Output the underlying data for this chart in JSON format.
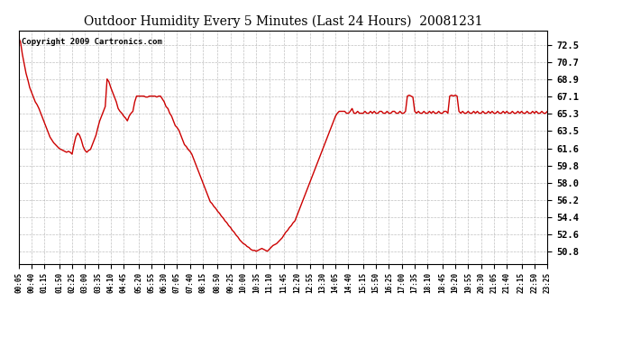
{
  "title": "Outdoor Humidity Every 5 Minutes (Last 24 Hours)  20081231",
  "copyright": "Copyright 2009 Cartronics.com",
  "line_color": "#cc0000",
  "bg_color": "#ffffff",
  "plot_bg_color": "#ffffff",
  "grid_color": "#b0b0b0",
  "yticks": [
    50.8,
    52.6,
    54.4,
    56.2,
    58.0,
    59.8,
    61.6,
    63.5,
    65.3,
    67.1,
    68.9,
    70.7,
    72.5
  ],
  "ylim": [
    49.5,
    74.0
  ],
  "x_labels": [
    "00:05",
    "00:40",
    "01:15",
    "01:50",
    "02:25",
    "03:00",
    "03:35",
    "04:10",
    "04:45",
    "05:20",
    "05:55",
    "06:30",
    "07:05",
    "07:40",
    "08:15",
    "08:50",
    "09:25",
    "10:00",
    "10:35",
    "11:10",
    "11:45",
    "12:20",
    "12:55",
    "13:30",
    "14:05",
    "14:40",
    "15:15",
    "15:50",
    "16:25",
    "17:00",
    "17:35",
    "18:10",
    "18:45",
    "19:20",
    "19:55",
    "20:30",
    "21:05",
    "21:40",
    "22:15",
    "22:50",
    "23:25"
  ],
  "y_data": [
    73.2,
    72.8,
    71.5,
    70.5,
    69.5,
    68.8,
    68.0,
    67.5,
    67.0,
    66.5,
    66.2,
    65.8,
    65.3,
    64.8,
    64.3,
    63.8,
    63.3,
    62.8,
    62.5,
    62.2,
    62.0,
    61.8,
    61.6,
    61.5,
    61.4,
    61.3,
    61.2,
    61.3,
    61.2,
    61.0,
    62.0,
    62.8,
    63.2,
    63.0,
    62.5,
    61.8,
    61.4,
    61.2,
    61.4,
    61.5,
    62.0,
    62.5,
    63.0,
    63.8,
    64.5,
    65.0,
    65.5,
    66.0,
    68.9,
    68.6,
    68.0,
    67.5,
    67.0,
    66.5,
    65.8,
    65.5,
    65.3,
    65.0,
    64.8,
    64.5,
    65.0,
    65.3,
    65.5,
    66.5,
    67.1,
    67.1,
    67.1,
    67.1,
    67.1,
    67.0,
    67.0,
    67.1,
    67.1,
    67.1,
    67.1,
    67.0,
    67.1,
    67.1,
    66.8,
    66.5,
    66.0,
    65.8,
    65.3,
    65.0,
    64.5,
    64.0,
    63.8,
    63.5,
    63.0,
    62.5,
    62.0,
    61.8,
    61.5,
    61.3,
    61.0,
    60.5,
    60.0,
    59.5,
    59.0,
    58.5,
    58.0,
    57.5,
    57.0,
    56.5,
    56.0,
    55.8,
    55.5,
    55.3,
    55.0,
    54.8,
    54.5,
    54.3,
    54.0,
    53.8,
    53.5,
    53.3,
    53.0,
    52.8,
    52.5,
    52.3,
    52.0,
    51.8,
    51.6,
    51.5,
    51.3,
    51.2,
    51.0,
    50.9,
    50.9,
    50.8,
    50.9,
    51.0,
    51.1,
    51.0,
    50.9,
    50.8,
    51.0,
    51.2,
    51.4,
    51.5,
    51.6,
    51.8,
    52.0,
    52.2,
    52.5,
    52.8,
    53.0,
    53.3,
    53.5,
    53.8,
    54.0,
    54.5,
    55.0,
    55.5,
    56.0,
    56.5,
    57.0,
    57.5,
    58.0,
    58.5,
    59.0,
    59.5,
    60.0,
    60.5,
    61.0,
    61.5,
    62.0,
    62.5,
    63.0,
    63.5,
    64.0,
    64.5,
    65.0,
    65.3,
    65.5,
    65.5,
    65.5,
    65.5,
    65.3,
    65.3,
    65.5,
    65.8,
    65.3,
    65.3,
    65.5,
    65.3,
    65.3,
    65.3,
    65.5,
    65.3,
    65.3,
    65.5,
    65.3,
    65.5,
    65.3,
    65.3,
    65.5,
    65.5,
    65.3,
    65.3,
    65.5,
    65.3,
    65.3,
    65.5,
    65.5,
    65.3,
    65.3,
    65.5,
    65.3,
    65.3,
    65.5,
    67.1,
    67.2,
    67.1,
    67.0,
    65.5,
    65.3,
    65.5,
    65.3,
    65.3,
    65.5,
    65.3,
    65.3,
    65.5,
    65.3,
    65.5,
    65.3,
    65.3,
    65.5,
    65.3,
    65.3,
    65.5,
    65.5,
    65.3,
    67.1,
    67.2,
    67.1,
    67.2,
    67.1,
    65.5,
    65.3,
    65.5,
    65.3,
    65.3,
    65.5,
    65.3,
    65.3,
    65.5,
    65.3,
    65.5,
    65.3,
    65.3,
    65.5,
    65.3,
    65.3,
    65.5,
    65.3,
    65.5,
    65.3,
    65.3,
    65.5,
    65.3,
    65.3,
    65.5,
    65.3,
    65.5,
    65.3,
    65.3,
    65.5,
    65.3,
    65.3,
    65.5,
    65.3,
    65.5,
    65.3,
    65.3,
    65.5,
    65.3,
    65.3,
    65.5,
    65.3,
    65.5,
    65.3,
    65.3,
    65.5,
    65.3,
    65.3,
    65.5
  ]
}
